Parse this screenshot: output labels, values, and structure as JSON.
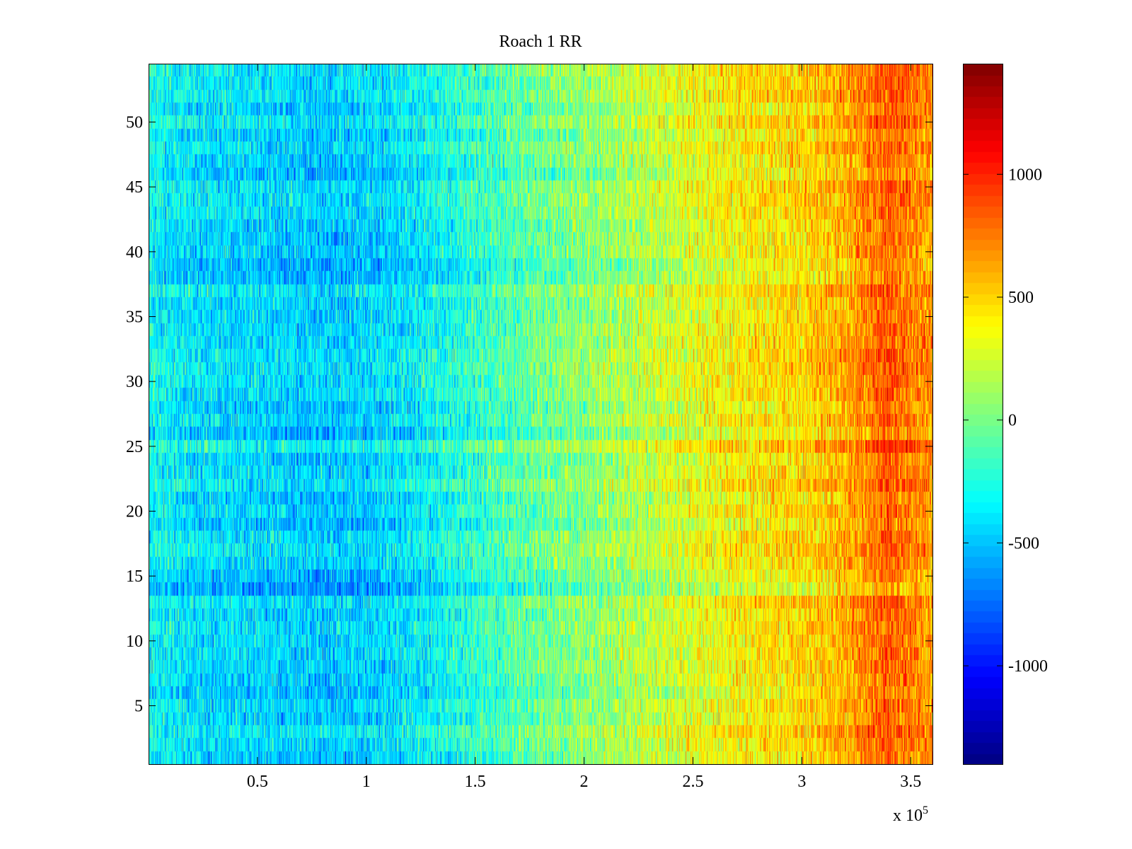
{
  "chart_data": {
    "type": "heatmap",
    "title": "Roach 1 RR",
    "xlabel": "",
    "ylabel": "",
    "x_multiplier_label": "x 10",
    "x_multiplier_exponent": "5",
    "xlim": [
      0,
      360000
    ],
    "ylim": [
      0.5,
      54.5
    ],
    "rows": 54,
    "x_ticks": [
      {
        "value": 50000,
        "label": "0.5"
      },
      {
        "value": 100000,
        "label": "1"
      },
      {
        "value": 150000,
        "label": "1.5"
      },
      {
        "value": 200000,
        "label": "2"
      },
      {
        "value": 250000,
        "label": "2.5"
      },
      {
        "value": 300000,
        "label": "3"
      },
      {
        "value": 350000,
        "label": "3.5"
      }
    ],
    "y_ticks": [
      {
        "value": 5,
        "label": "5"
      },
      {
        "value": 10,
        "label": "10"
      },
      {
        "value": 15,
        "label": "15"
      },
      {
        "value": 20,
        "label": "20"
      },
      {
        "value": 25,
        "label": "25"
      },
      {
        "value": 30,
        "label": "30"
      },
      {
        "value": 35,
        "label": "35"
      },
      {
        "value": 40,
        "label": "40"
      },
      {
        "value": 45,
        "label": "45"
      },
      {
        "value": 50,
        "label": "50"
      }
    ],
    "colormap": "jet",
    "color_range": [
      -1400,
      1450
    ],
    "colorbar_ticks": [
      {
        "value": 1000,
        "label": "1000"
      },
      {
        "value": 500,
        "label": "500"
      },
      {
        "value": 0,
        "label": "0"
      },
      {
        "value": -500,
        "label": "-500"
      },
      {
        "value": -1000,
        "label": "-1000"
      }
    ],
    "mean_value_profile": {
      "x": [
        0,
        20000,
        50000,
        80000,
        100000,
        120000,
        150000,
        180000,
        200000,
        220000,
        250000,
        270000,
        300000,
        320000,
        340000,
        345000,
        360000
      ],
      "value": [
        -300,
        -400,
        -430,
        -480,
        -450,
        -380,
        -200,
        -30,
        50,
        150,
        300,
        400,
        480,
        600,
        850,
        780,
        650
      ]
    },
    "noise_amplitude": 250
  }
}
